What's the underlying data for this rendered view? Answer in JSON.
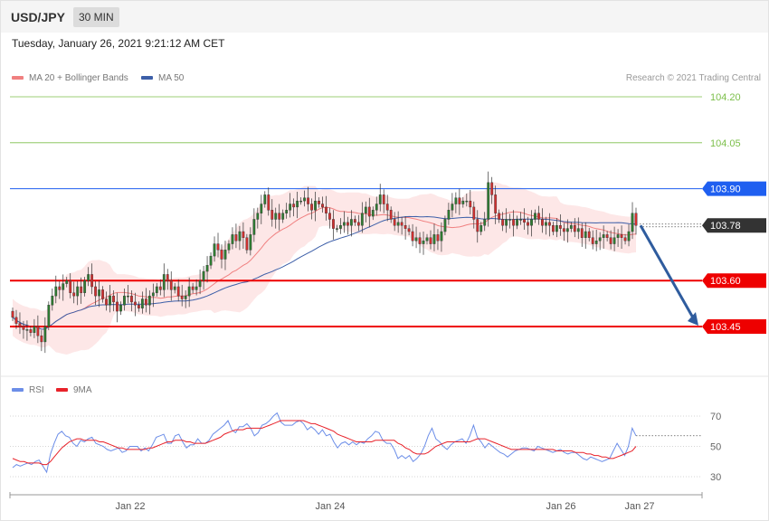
{
  "header": {
    "pair": "USD/JPY",
    "timeframe": "30 MIN"
  },
  "timestamp": "Tuesday, January 26, 2021 9:21:12 AM CET",
  "legend": {
    "ma20_label": "MA 20 + Bollinger Bands",
    "ma50_label": "MA 50",
    "rsi_label": "RSI",
    "rsi_ma_label": "9MA",
    "copyright": "Research © 2021 Trading Central"
  },
  "colors": {
    "green_levels": "#7cbf4a",
    "resistance": "#1f5ff0",
    "support": "#ee0000",
    "current": "#333333",
    "bull": "#2e7d32",
    "bear": "#d32f2f",
    "ma20": "#f08080",
    "ma50": "#3d5fa8",
    "bands_fill": "#fde4e4",
    "rsi": "#6c8ee8",
    "rsi_ma": "#e8222a",
    "arrow": "#2f5c9e"
  },
  "chart_data": [
    {
      "type": "candlestick",
      "title": "",
      "ylim": [
        103.3,
        104.3
      ],
      "x_ticks": [
        "Jan 22",
        "Jan 24",
        "Jan 26",
        "Jan 27"
      ],
      "levels": [
        {
          "value": 104.2,
          "label": "104.20",
          "kind": "target"
        },
        {
          "value": 104.05,
          "label": "104.05",
          "kind": "target"
        },
        {
          "value": 103.9,
          "label": "103.90",
          "kind": "resistance"
        },
        {
          "value": 103.78,
          "label": "103.78",
          "kind": "current"
        },
        {
          "value": 103.6,
          "label": "103.60",
          "kind": "support"
        },
        {
          "value": 103.45,
          "label": "103.45",
          "kind": "support"
        }
      ],
      "forecast_arrow": {
        "from": 103.78,
        "to": 103.45
      },
      "close": [
        103.48,
        103.46,
        103.45,
        103.44,
        103.44,
        103.43,
        103.45,
        103.42,
        103.4,
        103.45,
        103.52,
        103.55,
        103.58,
        103.57,
        103.59,
        103.6,
        103.56,
        103.55,
        103.58,
        103.56,
        103.6,
        103.62,
        103.58,
        103.55,
        103.57,
        103.54,
        103.52,
        103.55,
        103.53,
        103.5,
        103.52,
        103.55,
        103.55,
        103.53,
        103.52,
        103.51,
        103.54,
        103.52,
        103.55,
        103.56,
        103.58,
        103.57,
        103.62,
        103.6,
        103.57,
        103.58,
        103.55,
        103.54,
        103.55,
        103.58,
        103.57,
        103.58,
        103.6,
        103.63,
        103.65,
        103.68,
        103.72,
        103.7,
        103.67,
        103.7,
        103.72,
        103.75,
        103.73,
        103.76,
        103.74,
        103.7,
        103.75,
        103.8,
        103.82,
        103.85,
        103.88,
        103.83,
        103.8,
        103.82,
        103.8,
        103.82,
        103.83,
        103.85,
        103.84,
        103.86,
        103.86,
        103.87,
        103.85,
        103.83,
        103.86,
        103.85,
        103.84,
        103.82,
        103.8,
        103.77,
        103.77,
        103.78,
        103.79,
        103.78,
        103.8,
        103.79,
        103.78,
        103.82,
        103.84,
        103.81,
        103.83,
        103.85,
        103.88,
        103.85,
        103.83,
        103.8,
        103.78,
        103.79,
        103.78,
        103.77,
        103.76,
        103.73,
        103.74,
        103.72,
        103.73,
        103.74,
        103.72,
        103.75,
        103.73,
        103.76,
        103.8,
        103.83,
        103.85,
        103.87,
        103.85,
        103.86,
        103.86,
        103.84,
        103.8,
        103.76,
        103.78,
        103.8,
        103.92,
        103.88,
        103.82,
        103.8,
        103.78,
        103.8,
        103.8,
        103.78,
        103.8,
        103.8,
        103.79,
        103.78,
        103.8,
        103.82,
        103.8,
        103.78,
        103.79,
        103.78,
        103.76,
        103.78,
        103.77,
        103.76,
        103.77,
        103.78,
        103.76,
        103.77,
        103.74,
        103.76,
        103.74,
        103.72,
        103.73,
        103.74,
        103.75,
        103.74,
        103.72,
        103.74,
        103.75,
        103.74,
        103.73,
        103.76,
        103.82,
        103.78
      ]
    },
    {
      "type": "line",
      "title": "",
      "ylim": [
        20,
        80
      ],
      "y_ticks": [
        70,
        50,
        30
      ],
      "series": [
        {
          "name": "RSI",
          "values": [
            36,
            38,
            37,
            38,
            39,
            38,
            40,
            41,
            37,
            33,
            45,
            52,
            58,
            60,
            57,
            56,
            52,
            50,
            54,
            53,
            55,
            56,
            52,
            51,
            50,
            48,
            47,
            48,
            49,
            46,
            47,
            50,
            50,
            50,
            47,
            49,
            47,
            51,
            56,
            57,
            58,
            52,
            52,
            57,
            58,
            53,
            49,
            51,
            51,
            55,
            52,
            52,
            54,
            58,
            60,
            62,
            64,
            67,
            61,
            59,
            63,
            63,
            65,
            62,
            57,
            59,
            64,
            65,
            67,
            70,
            72,
            66,
            64,
            64,
            64,
            66,
            67,
            65,
            61,
            63,
            61,
            58,
            61,
            57,
            58,
            53,
            49,
            52,
            53,
            51,
            53,
            51,
            53,
            52,
            55,
            57,
            60,
            59,
            54,
            52,
            52,
            48,
            42,
            44,
            42,
            44,
            40,
            42,
            45,
            50,
            57,
            62,
            55,
            53,
            50,
            48,
            51,
            53,
            54,
            55,
            52,
            57,
            64,
            56,
            53,
            49,
            52,
            50,
            48,
            46,
            45,
            43,
            45,
            47,
            48,
            49,
            49,
            48,
            47,
            50,
            49,
            48,
            47,
            46,
            47,
            48,
            46,
            45,
            46,
            46,
            44,
            42,
            41,
            43,
            42,
            41,
            40,
            41,
            42,
            47,
            52,
            48,
            44,
            50,
            62,
            57
          ]
        },
        {
          "name": "9MA",
          "values": [
            42,
            41,
            40,
            40,
            39,
            39,
            39,
            39,
            38,
            38,
            40,
            43,
            46,
            49,
            51,
            53,
            54,
            55,
            55,
            54,
            54,
            54,
            54,
            53,
            53,
            52,
            51,
            50,
            49,
            49,
            48,
            48,
            48,
            48,
            48,
            48,
            49,
            49,
            50,
            51,
            52,
            53,
            53,
            54,
            54,
            54,
            53,
            53,
            52,
            52,
            52,
            52,
            53,
            54,
            55,
            56,
            58,
            59,
            60,
            61,
            61,
            61,
            62,
            62,
            62,
            62,
            62,
            63,
            64,
            65,
            66,
            67,
            67,
            67,
            67,
            67,
            67,
            67,
            66,
            65,
            65,
            64,
            63,
            62,
            61,
            60,
            58,
            57,
            56,
            55,
            54,
            53,
            53,
            53,
            53,
            53,
            54,
            54,
            54,
            54,
            54,
            54,
            52,
            51,
            49,
            48,
            46,
            45,
            45,
            45,
            46,
            48,
            50,
            51,
            52,
            53,
            53,
            53,
            53,
            53,
            53,
            53,
            54,
            55,
            55,
            55,
            54,
            53,
            52,
            51,
            50,
            49,
            48,
            48,
            48,
            48,
            48,
            48,
            48,
            48,
            48,
            48,
            48,
            48,
            47,
            47,
            47,
            47,
            47,
            46,
            46,
            46,
            45,
            45,
            44,
            44,
            43,
            43,
            42,
            42,
            43,
            44,
            45,
            46,
            47,
            50
          ]
        }
      ]
    }
  ]
}
